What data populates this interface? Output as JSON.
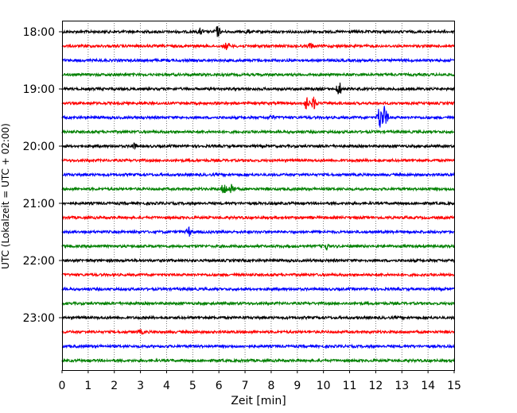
{
  "chart_data": {
    "type": "line",
    "chart_kind": "helicorder",
    "xlabel": "Zeit  [min]",
    "ylabel": "UTC (Lokalzeit = UTC + 02:00)",
    "xlim": [
      0,
      15
    ],
    "x_ticks": [
      "0",
      "1",
      "2",
      "3",
      "4",
      "5",
      "6",
      "7",
      "8",
      "9",
      "10",
      "11",
      "12",
      "13",
      "14",
      "15"
    ],
    "y_tick_labels": [
      "18:00",
      "19:00",
      "20:00",
      "21:00",
      "22:00",
      "23:00"
    ],
    "grid": {
      "x": "dotted",
      "y": false
    },
    "colors": [
      "#000000",
      "#ff0000",
      "#0000ff",
      "#008000"
    ],
    "traces": [
      {
        "start": "18:00",
        "color": "#000000",
        "events": [
          {
            "t": 5.3,
            "amp": 0.35
          },
          {
            "t": 5.95,
            "amp": 0.7
          },
          {
            "t": 7.1,
            "amp": 0.2
          }
        ]
      },
      {
        "start": "18:15",
        "color": "#ff0000",
        "events": [
          {
            "t": 6.3,
            "amp": 0.45
          },
          {
            "t": 9.5,
            "amp": 0.35
          }
        ]
      },
      {
        "start": "18:30",
        "color": "#0000ff",
        "events": []
      },
      {
        "start": "18:45",
        "color": "#008000",
        "events": []
      },
      {
        "start": "19:00",
        "color": "#000000",
        "events": [
          {
            "t": 10.6,
            "amp": 0.9
          }
        ]
      },
      {
        "start": "19:15",
        "color": "#ff0000",
        "events": [
          {
            "t": 9.35,
            "amp": 0.8
          },
          {
            "t": 9.65,
            "amp": 0.8
          }
        ]
      },
      {
        "start": "19:30",
        "color": "#0000ff",
        "events": [
          {
            "t": 8.0,
            "amp": 0.25
          },
          {
            "t": 12.15,
            "amp": 1.6
          },
          {
            "t": 12.35,
            "amp": 1.6
          }
        ]
      },
      {
        "start": "19:45",
        "color": "#008000",
        "events": []
      },
      {
        "start": "20:00",
        "color": "#000000",
        "events": [
          {
            "t": 2.75,
            "amp": 0.3
          }
        ]
      },
      {
        "start": "20:15",
        "color": "#ff0000",
        "events": []
      },
      {
        "start": "20:30",
        "color": "#0000ff",
        "events": []
      },
      {
        "start": "20:45",
        "color": "#008000",
        "events": [
          {
            "t": 6.2,
            "amp": 0.8
          },
          {
            "t": 6.5,
            "amp": 0.8
          }
        ]
      },
      {
        "start": "21:00",
        "color": "#000000",
        "events": []
      },
      {
        "start": "21:15",
        "color": "#ff0000",
        "events": []
      },
      {
        "start": "21:30",
        "color": "#0000ff",
        "events": [
          {
            "t": 4.85,
            "amp": 0.6
          }
        ]
      },
      {
        "start": "21:45",
        "color": "#008000",
        "events": [
          {
            "t": 10.1,
            "amp": 0.45
          }
        ]
      },
      {
        "start": "22:00",
        "color": "#000000",
        "events": []
      },
      {
        "start": "22:15",
        "color": "#ff0000",
        "events": []
      },
      {
        "start": "22:30",
        "color": "#0000ff",
        "events": []
      },
      {
        "start": "22:45",
        "color": "#008000",
        "events": []
      },
      {
        "start": "23:00",
        "color": "#000000",
        "events": []
      },
      {
        "start": "23:15",
        "color": "#ff0000",
        "events": [
          {
            "t": 3.0,
            "amp": 0.25
          }
        ]
      },
      {
        "start": "23:30",
        "color": "#0000ff",
        "events": []
      },
      {
        "start": "23:45",
        "color": "#008000",
        "events": []
      }
    ]
  }
}
